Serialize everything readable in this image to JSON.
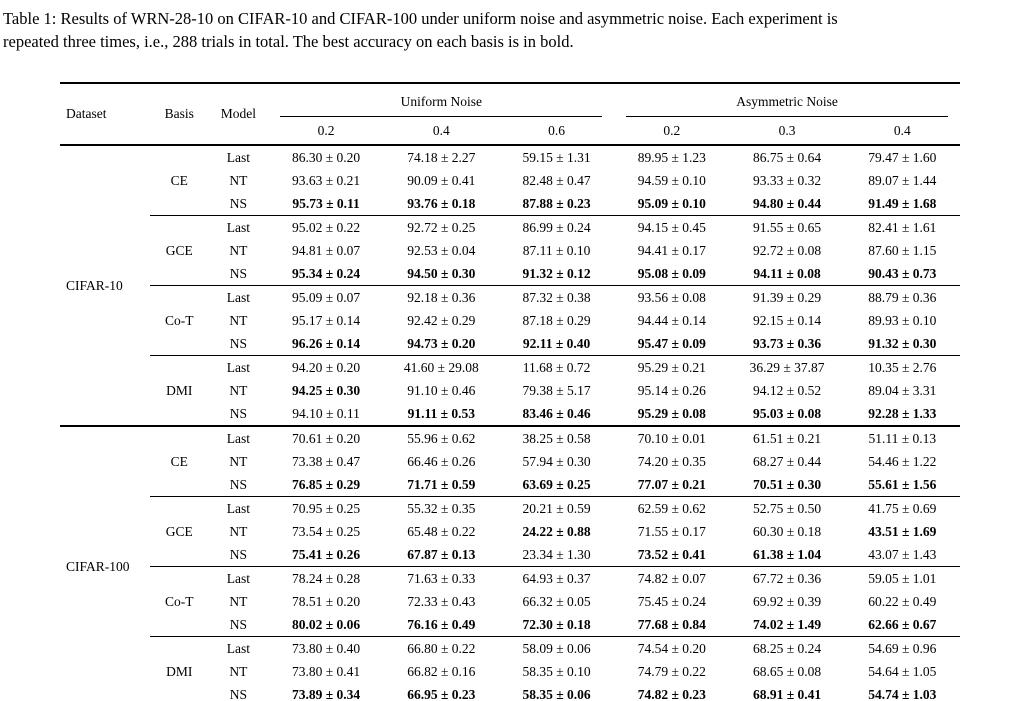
{
  "caption": {
    "lines": [
      "Table 1: Results of WRN-28-10 on CIFAR-10 and CIFAR-100 under uniform noise and asymmetric noise. Each experiment is",
      "repeated three times, i.e., 288 trials in total. The best accuracy on each basis is in bold."
    ]
  },
  "table": {
    "headers": {
      "dataset": "Dataset",
      "basis": "Basis",
      "model": "Model",
      "uniform": "Uniform Noise",
      "asymmetric": "Asymmetric Noise",
      "levels": [
        "0.2",
        "0.4",
        "0.6",
        "0.2",
        "0.3",
        "0.4"
      ]
    },
    "datasets": [
      {
        "name": "CIFAR-10",
        "groups": [
          {
            "basis": "CE",
            "rows": [
              {
                "model": "Last",
                "values": [
                  "86.30 ± 0.20",
                  "74.18 ± 2.27",
                  "59.15 ± 1.31",
                  "89.95 ± 1.23",
                  "86.75 ± 0.64",
                  "79.47 ± 1.60"
                ],
                "bold": [
                  0,
                  0,
                  0,
                  0,
                  0,
                  0
                ]
              },
              {
                "model": "NT",
                "values": [
                  "93.63 ± 0.21",
                  "90.09 ± 0.41",
                  "82.48 ± 0.47",
                  "94.59 ± 0.10",
                  "93.33 ± 0.32",
                  "89.07 ± 1.44"
                ],
                "bold": [
                  0,
                  0,
                  0,
                  0,
                  0,
                  0
                ]
              },
              {
                "model": "NS",
                "values": [
                  "95.73 ± 0.11",
                  "93.76 ± 0.18",
                  "87.88 ± 0.23",
                  "95.09 ± 0.10",
                  "94.80 ± 0.44",
                  "91.49 ± 1.68"
                ],
                "bold": [
                  1,
                  1,
                  1,
                  1,
                  1,
                  1
                ]
              }
            ]
          },
          {
            "basis": "GCE",
            "rows": [
              {
                "model": "Last",
                "values": [
                  "95.02 ± 0.22",
                  "92.72 ± 0.25",
                  "86.99 ± 0.24",
                  "94.15 ± 0.45",
                  "91.55 ± 0.65",
                  "82.41 ± 1.61"
                ],
                "bold": [
                  0,
                  0,
                  0,
                  0,
                  0,
                  0
                ]
              },
              {
                "model": "NT",
                "values": [
                  "94.81 ± 0.07",
                  "92.53 ± 0.04",
                  "87.11 ± 0.10",
                  "94.41 ± 0.17",
                  "92.72 ± 0.08",
                  "87.60 ± 1.15"
                ],
                "bold": [
                  0,
                  0,
                  0,
                  0,
                  0,
                  0
                ]
              },
              {
                "model": "NS",
                "values": [
                  "95.34 ± 0.24",
                  "94.50 ± 0.30",
                  "91.32 ± 0.12",
                  "95.08 ± 0.09",
                  "94.11 ± 0.08",
                  "90.43 ± 0.73"
                ],
                "bold": [
                  1,
                  1,
                  1,
                  1,
                  1,
                  1
                ]
              }
            ]
          },
          {
            "basis": "Co-T",
            "rows": [
              {
                "model": "Last",
                "values": [
                  "95.09 ± 0.07",
                  "92.18 ± 0.36",
                  "87.32 ± 0.38",
                  "93.56 ± 0.08",
                  "91.39 ± 0.29",
                  "88.79 ± 0.36"
                ],
                "bold": [
                  0,
                  0,
                  0,
                  0,
                  0,
                  0
                ]
              },
              {
                "model": "NT",
                "values": [
                  "95.17 ± 0.14",
                  "92.42 ± 0.29",
                  "87.18 ± 0.29",
                  "94.44 ± 0.14",
                  "92.15 ± 0.14",
                  "89.93 ± 0.10"
                ],
                "bold": [
                  0,
                  0,
                  0,
                  0,
                  0,
                  0
                ]
              },
              {
                "model": "NS",
                "values": [
                  "96.26 ± 0.14",
                  "94.73 ± 0.20",
                  "92.11 ± 0.40",
                  "95.47 ± 0.09",
                  "93.73 ± 0.36",
                  "91.32 ± 0.30"
                ],
                "bold": [
                  1,
                  1,
                  1,
                  1,
                  1,
                  1
                ]
              }
            ]
          },
          {
            "basis": "DMI",
            "rows": [
              {
                "model": "Last",
                "values": [
                  "94.20 ± 0.20",
                  "41.60 ± 29.08",
                  "11.68 ± 0.72",
                  "95.29 ± 0.21",
                  "36.29 ± 37.87",
                  "10.35 ± 2.76"
                ],
                "bold": [
                  0,
                  0,
                  0,
                  0,
                  0,
                  0
                ]
              },
              {
                "model": "NT",
                "values": [
                  "94.25 ± 0.30",
                  "91.10 ± 0.46",
                  "79.38 ± 5.17",
                  "95.14 ± 0.26",
                  "94.12 ± 0.52",
                  "89.04 ± 3.31"
                ],
                "bold": [
                  1,
                  0,
                  0,
                  0,
                  0,
                  0
                ]
              },
              {
                "model": "NS",
                "values": [
                  "94.10 ± 0.11",
                  "91.11 ± 0.53",
                  "83.46 ± 0.46",
                  "95.29 ± 0.08",
                  "95.03 ± 0.08",
                  "92.28 ± 1.33"
                ],
                "bold": [
                  0,
                  1,
                  1,
                  1,
                  1,
                  1
                ]
              }
            ]
          }
        ]
      },
      {
        "name": "CIFAR-100",
        "groups": [
          {
            "basis": "CE",
            "rows": [
              {
                "model": "Last",
                "values": [
                  "70.61 ± 0.20",
                  "55.96 ± 0.62",
                  "38.25 ± 0.58",
                  "70.10 ± 0.01",
                  "61.51 ± 0.21",
                  "51.11 ± 0.13"
                ],
                "bold": [
                  0,
                  0,
                  0,
                  0,
                  0,
                  0
                ]
              },
              {
                "model": "NT",
                "values": [
                  "73.38 ± 0.47",
                  "66.46 ± 0.26",
                  "57.94 ± 0.30",
                  "74.20 ± 0.35",
                  "68.27 ± 0.44",
                  "54.46 ± 1.22"
                ],
                "bold": [
                  0,
                  0,
                  0,
                  0,
                  0,
                  0
                ]
              },
              {
                "model": "NS",
                "values": [
                  "76.85 ± 0.29",
                  "71.71 ± 0.59",
                  "63.69 ± 0.25",
                  "77.07 ± 0.21",
                  "70.51 ± 0.30",
                  "55.61 ± 1.56"
                ],
                "bold": [
                  1,
                  1,
                  1,
                  1,
                  1,
                  1
                ]
              }
            ]
          },
          {
            "basis": "GCE",
            "rows": [
              {
                "model": "Last",
                "values": [
                  "70.95 ± 0.25",
                  "55.32 ± 0.35",
                  "20.21 ± 0.59",
                  "62.59 ± 0.62",
                  "52.75 ± 0.50",
                  "41.75 ± 0.69"
                ],
                "bold": [
                  0,
                  0,
                  0,
                  0,
                  0,
                  0
                ]
              },
              {
                "model": "NT",
                "values": [
                  "73.54 ± 0.25",
                  "65.48 ± 0.22",
                  "24.22 ± 0.88",
                  "71.55 ± 0.17",
                  "60.30 ± 0.18",
                  "43.51 ± 1.69"
                ],
                "bold": [
                  0,
                  0,
                  1,
                  0,
                  0,
                  1
                ]
              },
              {
                "model": "NS",
                "values": [
                  "75.41 ± 0.26",
                  "67.87 ± 0.13",
                  "23.34 ± 1.30",
                  "73.52 ± 0.41",
                  "61.38 ± 1.04",
                  "43.07 ± 1.43"
                ],
                "bold": [
                  1,
                  1,
                  0,
                  1,
                  1,
                  0
                ]
              }
            ]
          },
          {
            "basis": "Co-T",
            "rows": [
              {
                "model": "Last",
                "values": [
                  "78.24 ± 0.28",
                  "71.63 ± 0.33",
                  "64.93 ± 0.37",
                  "74.82 ± 0.07",
                  "67.72 ± 0.36",
                  "59.05 ± 1.01"
                ],
                "bold": [
                  0,
                  0,
                  0,
                  0,
                  0,
                  0
                ]
              },
              {
                "model": "NT",
                "values": [
                  "78.51 ± 0.20",
                  "72.33 ± 0.43",
                  "66.32 ± 0.05",
                  "75.45 ± 0.24",
                  "69.92 ± 0.39",
                  "60.22 ± 0.49"
                ],
                "bold": [
                  0,
                  0,
                  0,
                  0,
                  0,
                  0
                ]
              },
              {
                "model": "NS",
                "values": [
                  "80.02 ± 0.06",
                  "76.16 ± 0.49",
                  "72.30 ± 0.18",
                  "77.68 ± 0.84",
                  "74.02 ± 1.49",
                  "62.66 ± 0.67"
                ],
                "bold": [
                  1,
                  1,
                  1,
                  1,
                  1,
                  1
                ]
              }
            ]
          },
          {
            "basis": "DMI",
            "rows": [
              {
                "model": "Last",
                "values": [
                  "73.80 ± 0.40",
                  "66.80 ± 0.22",
                  "58.09 ± 0.06",
                  "74.54 ± 0.20",
                  "68.25 ± 0.24",
                  "54.69 ± 0.96"
                ],
                "bold": [
                  0,
                  0,
                  0,
                  0,
                  0,
                  0
                ]
              },
              {
                "model": "NT",
                "values": [
                  "73.80 ± 0.41",
                  "66.82 ± 0.16",
                  "58.35 ± 0.10",
                  "74.79 ± 0.22",
                  "68.65 ± 0.08",
                  "54.64 ± 1.05"
                ],
                "bold": [
                  0,
                  0,
                  0,
                  0,
                  0,
                  0
                ]
              },
              {
                "model": "NS",
                "values": [
                  "73.89 ± 0.34",
                  "66.95 ± 0.23",
                  "58.35 ± 0.06",
                  "74.82 ± 0.23",
                  "68.91 ± 0.41",
                  "54.74 ± 1.03"
                ],
                "bold": [
                  1,
                  1,
                  1,
                  1,
                  1,
                  1
                ]
              }
            ]
          }
        ]
      }
    ]
  }
}
